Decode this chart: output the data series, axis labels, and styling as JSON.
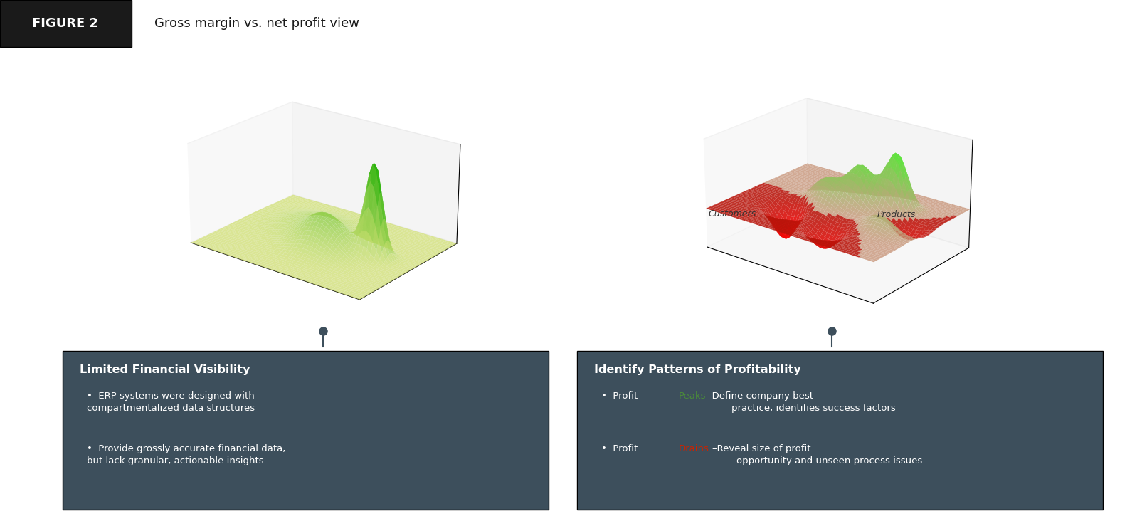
{
  "title": "Gross margin vs. net profit view",
  "figure_label": "FIGURE 2",
  "header_bg": "#1a1a1a",
  "header_text_color": "#ffffff",
  "body_bg": "#ffffff",
  "box_bg": "#3d4f5c",
  "box_text_color": "#ffffff",
  "left_box_title": "Limited Financial Visibility",
  "left_box_bullet1": "ERP systems were designed with\ncompartmentalized data structures",
  "left_box_bullet2": "Provide grossly accurate financial data,\nbut lack granular, actionable insights",
  "right_box_title": "Identify Patterns of Profitability",
  "right_box_bullet1_pre": "•  Profit ",
  "right_box_bullet1_peak": "Peaks",
  "right_box_bullet1_post": "–Define company best\n        practice, identifies success factors",
  "right_box_bullet2_pre": "•  Profit ",
  "right_box_bullet2_drain": "Drains",
  "right_box_bullet2_post": "–Reveal size of profit\n        opportunity and unseen process issues",
  "peak_color": "#4a8a3a",
  "drain_color": "#cc2200",
  "connector_color": "#3d4f5c",
  "divider_color": "#333333"
}
